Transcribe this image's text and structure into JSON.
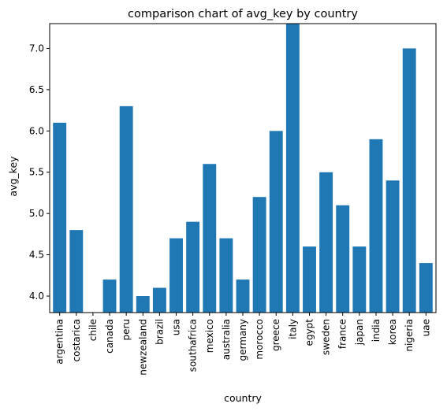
{
  "chart_data": {
    "type": "bar",
    "title": "comparison chart of avg_key by country",
    "xlabel": "country",
    "ylabel": "avg_key",
    "categories": [
      "argentina",
      "costarica",
      "chile",
      "canada",
      "peru",
      "newzealand",
      "brazil",
      "usa",
      "southafrica",
      "mexico",
      "australia",
      "germany",
      "morocco",
      "greece",
      "italy",
      "egypt",
      "sweden",
      "france",
      "japan",
      "india",
      "korea",
      "nigeria",
      "uae"
    ],
    "values": [
      6.1,
      4.8,
      3.8,
      4.2,
      6.3,
      4.0,
      4.1,
      4.7,
      4.9,
      5.6,
      4.7,
      4.2,
      5.2,
      6.0,
      7.3,
      4.6,
      5.5,
      5.1,
      4.6,
      5.9,
      5.4,
      7.0,
      4.4
    ],
    "ylim": [
      3.8,
      7.3
    ],
    "yticks": [
      4.0,
      4.5,
      5.0,
      5.5,
      6.0,
      6.5,
      7.0
    ],
    "ytick_labels": [
      "4.0",
      "4.5",
      "5.0",
      "5.5",
      "6.0",
      "6.5",
      "7.0"
    ],
    "bar_color": "#1f77b4",
    "grid": false,
    "legend": "none"
  }
}
